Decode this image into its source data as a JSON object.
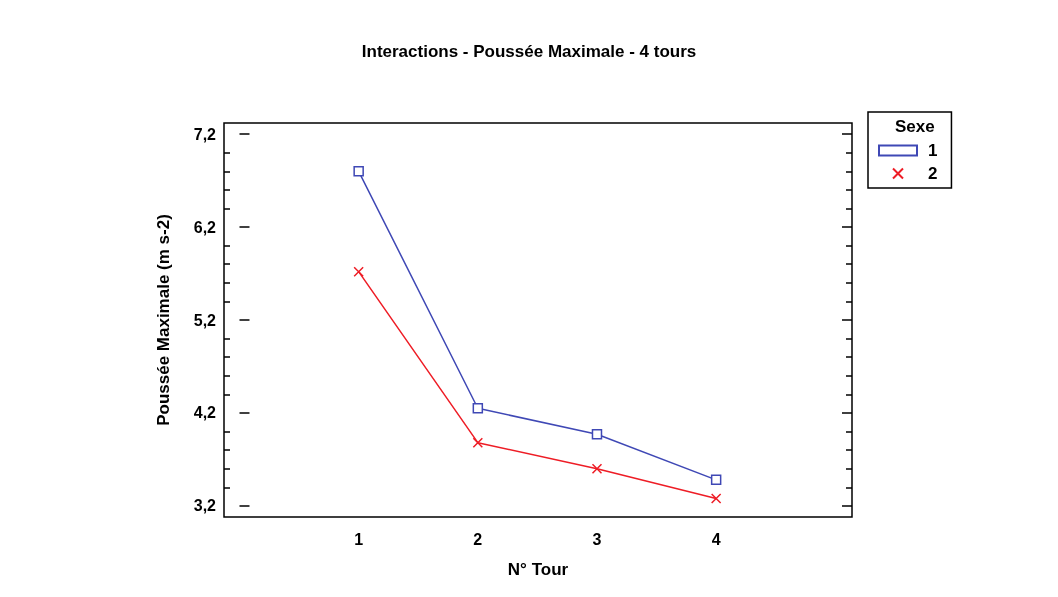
{
  "chart_data": {
    "type": "line",
    "title": "Interactions - Poussée Maximale - 4 tours",
    "xlabel": "N° Tour",
    "ylabel": "Poussée Maximale (m s-2)",
    "legend_title": "Sexe",
    "x": [
      1,
      2,
      3,
      4
    ],
    "series": [
      {
        "name": "1",
        "color": "#3f48b5",
        "marker": "square",
        "values": [
          6.8,
          4.25,
          3.97,
          3.48
        ]
      },
      {
        "name": "2",
        "color": "#ee1c25",
        "marker": "cross",
        "values": [
          5.72,
          3.88,
          3.6,
          3.28
        ]
      }
    ],
    "xlim": [
      -0.13,
      5.14
    ],
    "xticks": [
      1,
      2,
      3,
      4
    ],
    "ylim": [
      3.08,
      7.32
    ],
    "yticks": [
      {
        "value": 3.2,
        "label": "3,2"
      },
      {
        "value": 3.4,
        "label": null
      },
      {
        "value": 3.6,
        "label": null
      },
      {
        "value": 3.8,
        "label": null
      },
      {
        "value": 4.0,
        "label": null
      },
      {
        "value": 4.2,
        "label": "4,2"
      },
      {
        "value": 4.4,
        "label": null
      },
      {
        "value": 4.6,
        "label": null
      },
      {
        "value": 4.8,
        "label": null
      },
      {
        "value": 5.0,
        "label": null
      },
      {
        "value": 5.2,
        "label": "5,2"
      },
      {
        "value": 5.4,
        "label": null
      },
      {
        "value": 5.6,
        "label": null
      },
      {
        "value": 5.8,
        "label": null
      },
      {
        "value": 6.0,
        "label": null
      },
      {
        "value": 6.2,
        "label": "6,2"
      },
      {
        "value": 6.4,
        "label": null
      },
      {
        "value": 6.6,
        "label": null
      },
      {
        "value": 6.8,
        "label": null
      },
      {
        "value": 7.0,
        "label": null
      },
      {
        "value": 7.2,
        "label": "7,2"
      }
    ],
    "grid": false,
    "legend": "top right",
    "line_style": "solid"
  }
}
